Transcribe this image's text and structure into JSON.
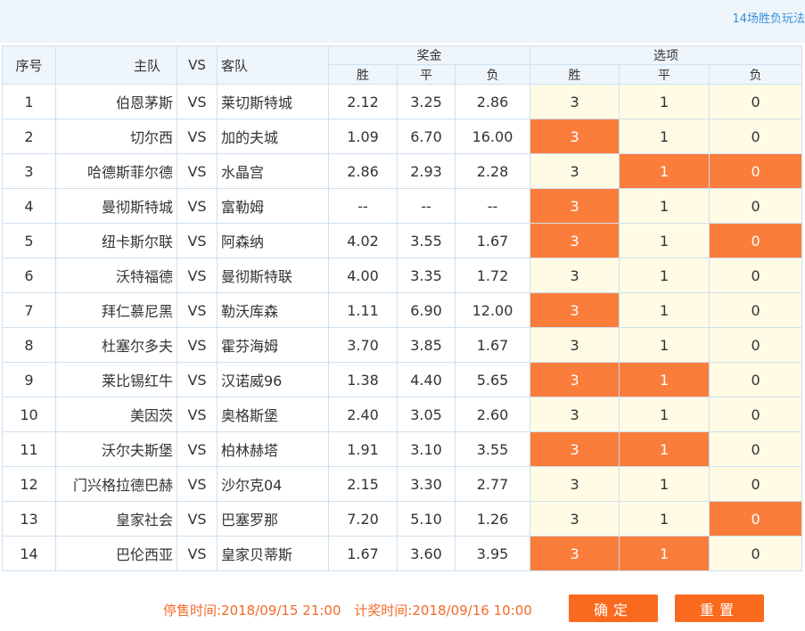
{
  "top_link": "14场胜负玩法",
  "headers": {
    "index": "序号",
    "home": "主队",
    "vs": "VS",
    "away": "客队",
    "prize": "奖金",
    "options": "选项",
    "win": "胜",
    "draw": "平",
    "lose": "负"
  },
  "matches": [
    {
      "no": "1",
      "home": "伯恩茅斯",
      "vs": "VS",
      "away": "莱切斯特城",
      "w": "2.12",
      "d": "3.25",
      "l": "2.86",
      "o3": "3",
      "o1": "1",
      "o0": "0",
      "sel": []
    },
    {
      "no": "2",
      "home": "切尔西",
      "vs": "VS",
      "away": "加的夫城",
      "w": "1.09",
      "d": "6.70",
      "l": "16.00",
      "o3": "3",
      "o1": "1",
      "o0": "0",
      "sel": [
        "3"
      ]
    },
    {
      "no": "3",
      "home": "哈德斯菲尔德",
      "vs": "VS",
      "away": "水晶宫",
      "w": "2.86",
      "d": "2.93",
      "l": "2.28",
      "o3": "3",
      "o1": "1",
      "o0": "0",
      "sel": [
        "1",
        "0"
      ]
    },
    {
      "no": "4",
      "home": "曼彻斯特城",
      "vs": "VS",
      "away": "富勒姆",
      "w": "--",
      "d": "--",
      "l": "--",
      "o3": "3",
      "o1": "1",
      "o0": "0",
      "sel": [
        "3"
      ]
    },
    {
      "no": "5",
      "home": "纽卡斯尔联",
      "vs": "VS",
      "away": "阿森纳",
      "w": "4.02",
      "d": "3.55",
      "l": "1.67",
      "o3": "3",
      "o1": "1",
      "o0": "0",
      "sel": [
        "3",
        "0"
      ]
    },
    {
      "no": "6",
      "home": "沃特福德",
      "vs": "VS",
      "away": "曼彻斯特联",
      "w": "4.00",
      "d": "3.35",
      "l": "1.72",
      "o3": "3",
      "o1": "1",
      "o0": "0",
      "sel": []
    },
    {
      "no": "7",
      "home": "拜仁慕尼黑",
      "vs": "VS",
      "away": "勒沃库森",
      "w": "1.11",
      "d": "6.90",
      "l": "12.00",
      "o3": "3",
      "o1": "1",
      "o0": "0",
      "sel": [
        "3"
      ]
    },
    {
      "no": "8",
      "home": "杜塞尔多夫",
      "vs": "VS",
      "away": "霍芬海姆",
      "w": "3.70",
      "d": "3.85",
      "l": "1.67",
      "o3": "3",
      "o1": "1",
      "o0": "0",
      "sel": []
    },
    {
      "no": "9",
      "home": "莱比锡红牛",
      "vs": "VS",
      "away": "汉诺威96",
      "w": "1.38",
      "d": "4.40",
      "l": "5.65",
      "o3": "3",
      "o1": "1",
      "o0": "0",
      "sel": [
        "3",
        "1"
      ]
    },
    {
      "no": "10",
      "home": "美因茨",
      "vs": "VS",
      "away": "奥格斯堡",
      "w": "2.40",
      "d": "3.05",
      "l": "2.60",
      "o3": "3",
      "o1": "1",
      "o0": "0",
      "sel": []
    },
    {
      "no": "11",
      "home": "沃尔夫斯堡",
      "vs": "VS",
      "away": "柏林赫塔",
      "w": "1.91",
      "d": "3.10",
      "l": "3.55",
      "o3": "3",
      "o1": "1",
      "o0": "0",
      "sel": [
        "3",
        "1"
      ]
    },
    {
      "no": "12",
      "home": "门兴格拉德巴赫",
      "vs": "VS",
      "away": "沙尔克04",
      "w": "2.15",
      "d": "3.30",
      "l": "2.77",
      "o3": "3",
      "o1": "1",
      "o0": "0",
      "sel": []
    },
    {
      "no": "13",
      "home": "皇家社会",
      "vs": "VS",
      "away": "巴塞罗那",
      "w": "7.20",
      "d": "5.10",
      "l": "1.26",
      "o3": "3",
      "o1": "1",
      "o0": "0",
      "sel": [
        "0"
      ]
    },
    {
      "no": "14",
      "home": "巴伦西亚",
      "vs": "VS",
      "away": "皇家贝蒂斯",
      "w": "1.67",
      "d": "3.60",
      "l": "3.95",
      "o3": "3",
      "o1": "1",
      "o0": "0",
      "sel": [
        "3",
        "1"
      ]
    }
  ],
  "footer": {
    "stop_time": "停售时间:2018/09/15 21:00",
    "draw_time": "计奖时间:2018/09/16 10:00",
    "confirm_label": "确定",
    "reset_label": "重置"
  },
  "colors": {
    "selected": "#fa7d3c",
    "unselected": "#fffbe5",
    "header_bg": "#eef6fc",
    "button": "#fa6a1e",
    "time_text": "#f26a2a"
  }
}
